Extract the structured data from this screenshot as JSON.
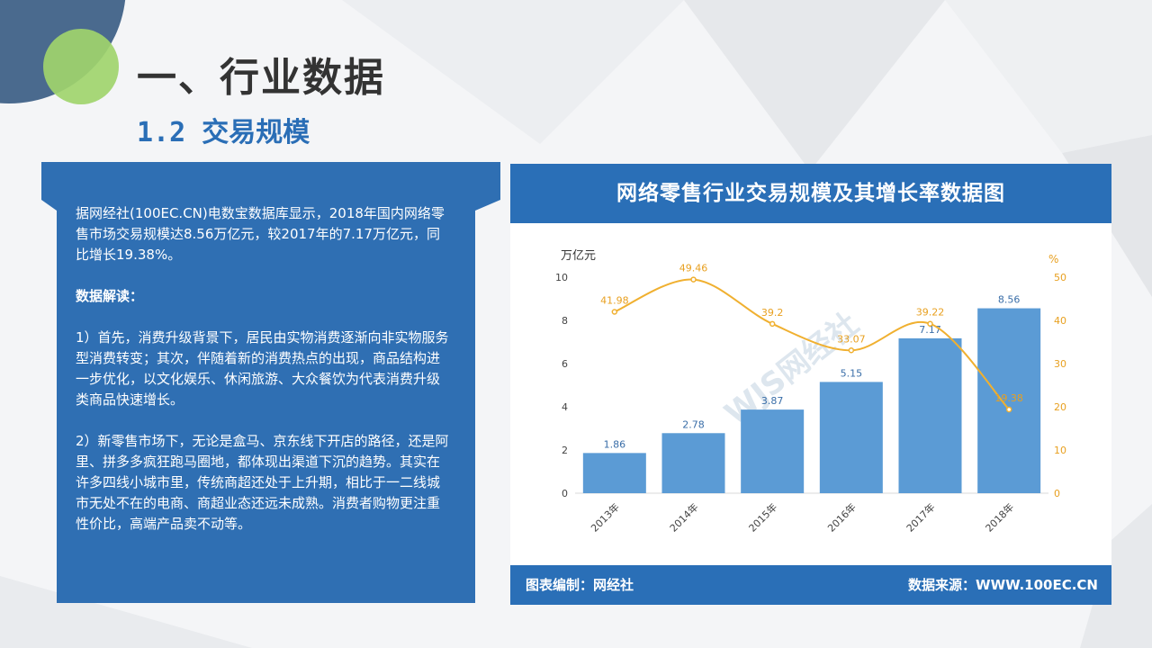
{
  "heading": {
    "title": "一、行业数据",
    "subtitle": "1.2 交易规模"
  },
  "panel": {
    "intro": "据网经社(100EC.CN)电数宝数据库显示，2018年国内网络零售市场交易规模达8.56万亿元，较2017年的7.17万亿元，同比增长19.38%。",
    "section_title": "数据解读：",
    "point1": "1）首先，消费升级背景下，居民由实物消费逐渐向非实物服务型消费转变；其次，伴随着新的消费热点的出现，商品结构进一步优化，以文化娱乐、休闲旅游、大众餐饮为代表消费升级类商品快速增长。",
    "point2": "2）新零售市场下，无论是盒马、京东线下开店的路径，还是阿里、拼多多疯狂跑马圈地，都体现出渠道下沉的趋势。其实在许多四线小城市里，传统商超还处于上升期，相比于一二线城市无处不在的电商、商超业态还远未成熟。消费者购物更注重性价比，高端产品卖不动等。"
  },
  "chart_card": {
    "footer_left": "图表编制：网经社",
    "footer_right": "数据来源：WWW.100EC.CN",
    "watermark": "WJS网经社"
  },
  "colors": {
    "bar": "#5b9bd5",
    "line": "#f0b030",
    "header": "#2a6fb7",
    "panel": "#2f6fb3",
    "accent_green": "#9fd46c",
    "accent_navy": "#4a6a8e"
  },
  "chart_data": {
    "type": "bar+line",
    "title": "网络零售行业交易规模及其增长率数据图",
    "categories": [
      "2013年",
      "2014年",
      "2015年",
      "2016年",
      "2017年",
      "2018年"
    ],
    "series": [
      {
        "type": "bar",
        "axis": "left",
        "values": [
          1.86,
          2.78,
          3.87,
          5.15,
          7.17,
          8.56
        ]
      },
      {
        "type": "line",
        "axis": "right",
        "values": [
          41.98,
          49.46,
          39.2,
          33.07,
          39.22,
          19.38
        ]
      }
    ],
    "bar_labels": [
      "1.86",
      "2.78",
      "3.87",
      "5.15",
      "7.17",
      "8.56"
    ],
    "line_labels": [
      "41.98",
      "49.46",
      "39.2",
      "33.07",
      "39.22",
      "19.38"
    ],
    "ylabel_left": "万亿元",
    "ylabel_right": "%",
    "ylim_left": [
      0,
      10
    ],
    "ylim_right": [
      0,
      50
    ],
    "yticks_left": [
      "0",
      "2",
      "4",
      "6",
      "8",
      "10"
    ],
    "yticks_right": [
      "0",
      "10",
      "20",
      "30",
      "40",
      "50"
    ],
    "grid": false,
    "legend": "none"
  }
}
